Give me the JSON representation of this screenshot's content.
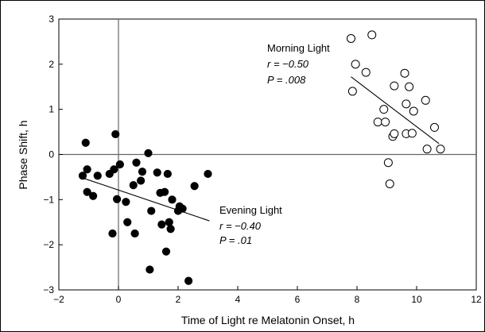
{
  "chart_data": {
    "type": "scatter",
    "title": "",
    "xlabel": "Time of Light re Melatonin Onset, h",
    "ylabel": "Phase Shift, h",
    "xlim": [
      -2,
      12
    ],
    "ylim": [
      -3,
      3
    ],
    "xticks": [
      -2,
      0,
      2,
      4,
      6,
      8,
      10,
      12
    ],
    "yticks": [
      -3,
      -2,
      -1,
      0,
      1,
      2,
      3
    ],
    "grid": false,
    "reference_lines": {
      "x": 0,
      "y": 0
    },
    "series": [
      {
        "name": "Evening Light",
        "marker": "filled-circle",
        "color": "#000000",
        "points": [
          [
            -1.2,
            -0.47
          ],
          [
            -1.1,
            0.26
          ],
          [
            -1.05,
            -0.33
          ],
          [
            -1.05,
            -0.83
          ],
          [
            -0.85,
            -0.92
          ],
          [
            -0.7,
            -0.47
          ],
          [
            -0.3,
            -0.43
          ],
          [
            -0.2,
            -1.75
          ],
          [
            -0.15,
            -0.33
          ],
          [
            -0.1,
            0.45
          ],
          [
            -0.05,
            -0.99
          ],
          [
            0.05,
            -0.22
          ],
          [
            0.25,
            -1.05
          ],
          [
            0.3,
            -1.5
          ],
          [
            0.5,
            -0.68
          ],
          [
            0.55,
            -1.75
          ],
          [
            0.6,
            -0.18
          ],
          [
            0.75,
            -0.58
          ],
          [
            0.8,
            -0.38
          ],
          [
            1.0,
            0.03
          ],
          [
            1.05,
            -2.55
          ],
          [
            1.1,
            -1.25
          ],
          [
            1.3,
            -0.4
          ],
          [
            1.4,
            -0.85
          ],
          [
            1.45,
            -1.55
          ],
          [
            1.55,
            -0.83
          ],
          [
            1.6,
            -2.15
          ],
          [
            1.65,
            -0.43
          ],
          [
            1.75,
            -1.65
          ],
          [
            1.8,
            -1.0
          ],
          [
            2.0,
            -1.25
          ],
          [
            2.05,
            -1.15
          ],
          [
            2.15,
            -1.2
          ],
          [
            2.35,
            -2.8
          ],
          [
            2.55,
            -0.7
          ],
          [
            3.0,
            -0.43
          ],
          [
            1.7,
            -1.5
          ]
        ],
        "fit": {
          "x": [
            -1.2,
            3.05
          ],
          "y": [
            -0.52,
            -1.47
          ]
        },
        "annotation": {
          "label": "Evening Light",
          "r": "r = −0.40",
          "p": "P = .01"
        }
      },
      {
        "name": "Morning Light",
        "marker": "open-circle",
        "color": "#000000",
        "points": [
          [
            7.8,
            2.57
          ],
          [
            7.85,
            1.4
          ],
          [
            7.95,
            2.0
          ],
          [
            8.3,
            1.82
          ],
          [
            8.5,
            2.65
          ],
          [
            8.7,
            0.72
          ],
          [
            8.9,
            1.0
          ],
          [
            8.95,
            0.72
          ],
          [
            9.05,
            -0.18
          ],
          [
            9.1,
            -0.65
          ],
          [
            9.2,
            0.4
          ],
          [
            9.25,
            0.46
          ],
          [
            9.25,
            1.52
          ],
          [
            9.6,
            1.8
          ],
          [
            9.65,
            0.46
          ],
          [
            9.65,
            1.12
          ],
          [
            9.75,
            1.5
          ],
          [
            9.85,
            0.47
          ],
          [
            9.9,
            0.96
          ],
          [
            10.3,
            1.2
          ],
          [
            10.35,
            0.12
          ],
          [
            10.6,
            0.6
          ],
          [
            10.8,
            0.12
          ]
        ],
        "fit": {
          "x": [
            7.8,
            10.75
          ],
          "y": [
            1.72,
            0.24
          ]
        },
        "annotation": {
          "label": "Morning Light",
          "r": "r = −0.50",
          "p": "P = .008"
        }
      }
    ]
  }
}
